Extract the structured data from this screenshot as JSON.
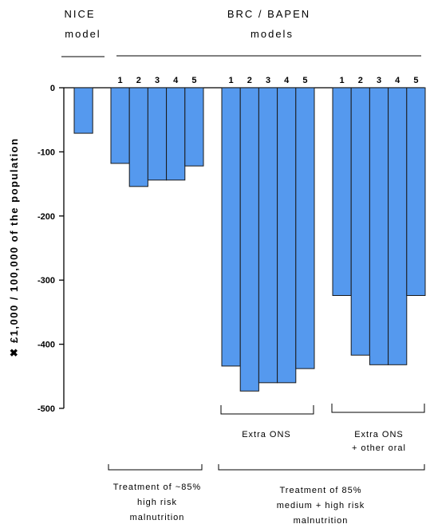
{
  "header": {
    "nice_line1": "NICE",
    "nice_line2": "model",
    "brc_line1": "BRC / BAPEN",
    "brc_line2": "models"
  },
  "y_axis_label": "✖ £1,000 / 100,000 of the population",
  "annotations": {
    "extra_ons": "Extra ONS",
    "extra_ons_other_line1": "Extra ONS",
    "extra_ons_other_line2": "+ other oral",
    "treat85_line1": "Treatment of ~85%",
    "treat85_line2": "high risk",
    "treat85_line3": "malnutrition",
    "treatmed_line1": "Treatment of 85%",
    "treatmed_line2": "medium + high risk",
    "treatmed_line3": "malnutrition"
  },
  "chart_data": {
    "type": "bar",
    "ylim": [
      -500,
      0
    ],
    "yticks": [
      0,
      -100,
      -200,
      -300,
      -400,
      -500
    ],
    "ytick_labels": [
      "0",
      "-100",
      "-200",
      "-300",
      "-400",
      "-500"
    ],
    "groups": [
      {
        "id": "nice",
        "labels": [
          ""
        ],
        "values": [
          -71
        ]
      },
      {
        "id": "brc_high",
        "labels": [
          "1",
          "2",
          "3",
          "4",
          "5"
        ],
        "values": [
          -118,
          -154,
          -144,
          -144,
          -122
        ]
      },
      {
        "id": "brc_ons",
        "labels": [
          "1",
          "2",
          "3",
          "4",
          "5"
        ],
        "values": [
          -434,
          -473,
          -460,
          -460,
          -438
        ]
      },
      {
        "id": "brc_ons_other",
        "labels": [
          "1",
          "2",
          "3",
          "4",
          "5"
        ],
        "values": [
          -324,
          -417,
          -432,
          -432,
          -324
        ]
      }
    ],
    "colors": {
      "bar": "#5599ee",
      "edge": "#1a1a1a"
    }
  }
}
